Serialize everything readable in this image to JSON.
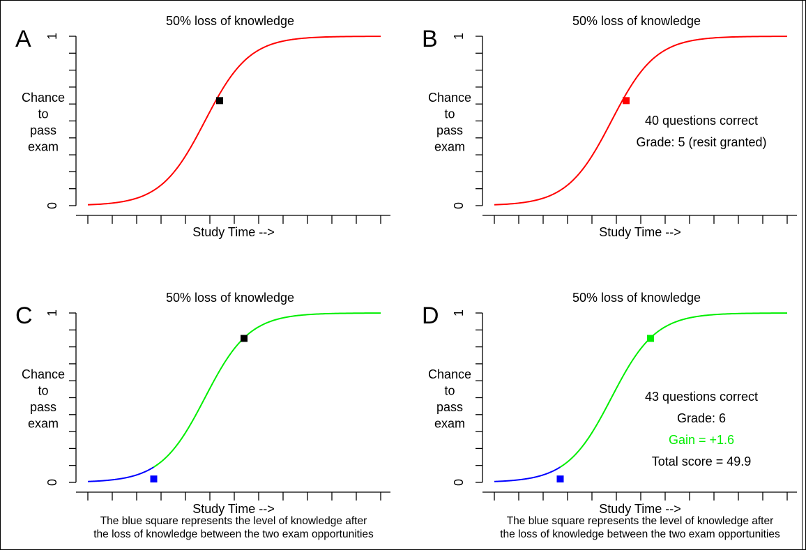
{
  "chart_data": [
    {
      "panel_letter": "A",
      "type": "line",
      "title": "50% loss of knowledge",
      "xlabel": "Study Time -->",
      "ylabel": [
        "Chance",
        "to",
        "pass",
        "exam"
      ],
      "ytick_labels": [
        "0",
        "1"
      ],
      "ylim": [
        0,
        1
      ],
      "xlim": [
        0,
        12
      ],
      "grid": false,
      "series": [
        {
          "color": "#ff0000",
          "x_range": [
            0,
            12
          ]
        }
      ],
      "markers": [
        {
          "x": 5.4,
          "y": 0.62,
          "color": "#000000"
        }
      ],
      "annotations": [],
      "caption": []
    },
    {
      "panel_letter": "B",
      "type": "line",
      "title": "50% loss of knowledge",
      "xlabel": "Study Time -->",
      "ylabel": [
        "Chance",
        "to",
        "pass",
        "exam"
      ],
      "ytick_labels": [
        "0",
        "1"
      ],
      "ylim": [
        0,
        1
      ],
      "xlim": [
        0,
        12
      ],
      "grid": false,
      "series": [
        {
          "color": "#ff0000",
          "x_range": [
            0,
            12
          ]
        }
      ],
      "markers": [
        {
          "x": 5.4,
          "y": 0.62,
          "color": "#ff0000"
        }
      ],
      "annotations": [
        {
          "text": "40 questions correct",
          "color": "#000000"
        },
        {
          "text": "Grade: 5 (resit granted)",
          "color": "#000000"
        }
      ],
      "caption": []
    },
    {
      "panel_letter": "C",
      "type": "line",
      "title": "50% loss of knowledge",
      "xlabel": "Study Time -->",
      "ylabel": [
        "Chance",
        "to",
        "pass",
        "exam"
      ],
      "ytick_labels": [
        "0",
        "1"
      ],
      "ylim": [
        0,
        1
      ],
      "xlim": [
        0,
        12
      ],
      "grid": false,
      "series": [
        {
          "color": "#0000ff",
          "x_range": [
            0,
            2.7
          ]
        },
        {
          "color": "#00ee00",
          "x_range": [
            2.7,
            12
          ]
        }
      ],
      "markers": [
        {
          "x": 2.7,
          "y": 0.02,
          "color": "#0000ff"
        },
        {
          "x": 6.4,
          "y": 0.85,
          "color": "#000000"
        }
      ],
      "annotations": [],
      "caption": [
        "The blue square represents the level of knowledge after",
        "the loss of knowledge between the two exam opportunities"
      ]
    },
    {
      "panel_letter": "D",
      "type": "line",
      "title": "50% loss of knowledge",
      "xlabel": "Study Time -->",
      "ylabel": [
        "Chance",
        "to",
        "pass",
        "exam"
      ],
      "ytick_labels": [
        "0",
        "1"
      ],
      "ylim": [
        0,
        1
      ],
      "xlim": [
        0,
        12
      ],
      "grid": false,
      "series": [
        {
          "color": "#0000ff",
          "x_range": [
            0,
            2.7
          ]
        },
        {
          "color": "#00ee00",
          "x_range": [
            2.7,
            12
          ]
        }
      ],
      "markers": [
        {
          "x": 2.7,
          "y": 0.02,
          "color": "#0000ff"
        },
        {
          "x": 6.4,
          "y": 0.85,
          "color": "#00ee00"
        }
      ],
      "annotations": [
        {
          "text": "43 questions correct",
          "color": "#000000"
        },
        {
          "text": "Grade: 6",
          "color": "#000000"
        },
        {
          "text": "Gain = +1.6",
          "color": "#00ee00"
        },
        {
          "text": "Total score = 49.9",
          "color": "#000000"
        }
      ],
      "caption": [
        "The blue square represents the level of knowledge after",
        "the loss of knowledge between the two exam opportunities"
      ]
    }
  ]
}
